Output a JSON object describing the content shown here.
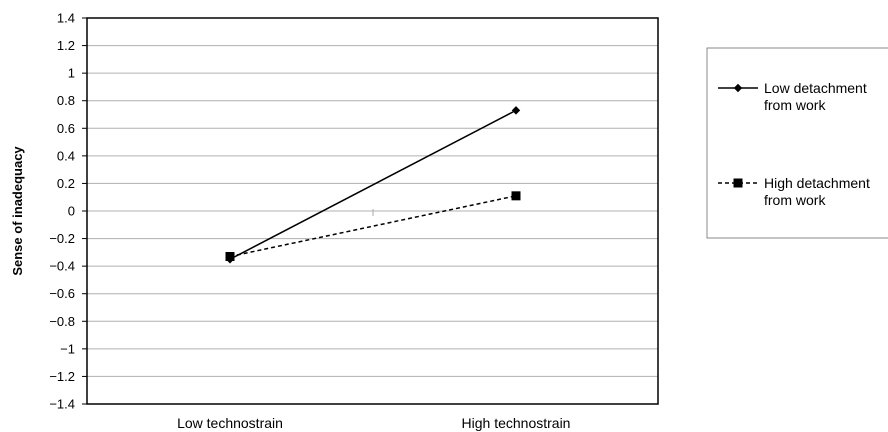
{
  "chart_data": {
    "type": "line",
    "categories": [
      "Low technostrain",
      "High technostrain"
    ],
    "ylabel": "Sense of inadequacy",
    "xlabel": "",
    "ylim": [
      -1.4,
      1.4
    ],
    "yticks": [
      "1.4",
      "1.2",
      "1",
      "0.8",
      "0.6",
      "0.4",
      "0.2",
      "0",
      "−0.2",
      "−0.4",
      "−0.6",
      "−0.8",
      "−1",
      "−1.2",
      "−1.4"
    ],
    "ytick_values": [
      1.4,
      1.2,
      1.0,
      0.8,
      0.6,
      0.4,
      0.2,
      0,
      -0.2,
      -0.4,
      -0.6,
      -0.8,
      -1.0,
      -1.2,
      -1.4
    ],
    "grid": true,
    "legend_position": "right",
    "series": [
      {
        "legend_lines": [
          "Low detachment",
          "from work"
        ],
        "values": [
          -0.35,
          0.73
        ],
        "line_style": "solid",
        "marker": "diamond",
        "color": "#000000"
      },
      {
        "legend_lines": [
          "High detachment",
          "from work"
        ],
        "values": [
          -0.33,
          0.11
        ],
        "line_style": "dashed",
        "marker": "square",
        "color": "#000000"
      }
    ]
  }
}
